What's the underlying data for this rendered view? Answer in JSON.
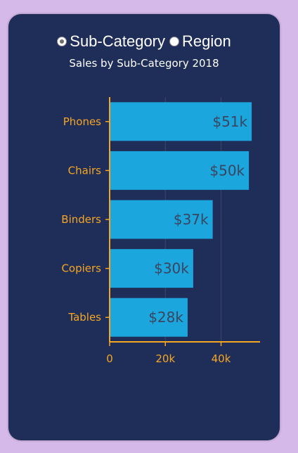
{
  "radio": {
    "options": [
      {
        "label": "Sub-Category",
        "checked": true
      },
      {
        "label": "Region",
        "checked": false
      }
    ]
  },
  "colors": {
    "background": "#d5b9e9",
    "card": "#1f2d59",
    "bar": "#1ba6de",
    "axis": "#f5a623",
    "bar_label": "#3a4560"
  },
  "chart_data": {
    "type": "bar",
    "orientation": "horizontal",
    "title": "Sales by Sub-Category 2018",
    "categories": [
      "Phones",
      "Chairs",
      "Binders",
      "Copiers",
      "Tables"
    ],
    "values": [
      51,
      50,
      37,
      30,
      28
    ],
    "value_labels": [
      "$51k",
      "$50k",
      "$37k",
      "$30k",
      "$28k"
    ],
    "x_ticks": [
      0,
      20,
      40
    ],
    "x_tick_labels": [
      "0",
      "20k",
      "40k"
    ],
    "xlim": [
      0,
      54
    ],
    "grid": "vertical"
  }
}
